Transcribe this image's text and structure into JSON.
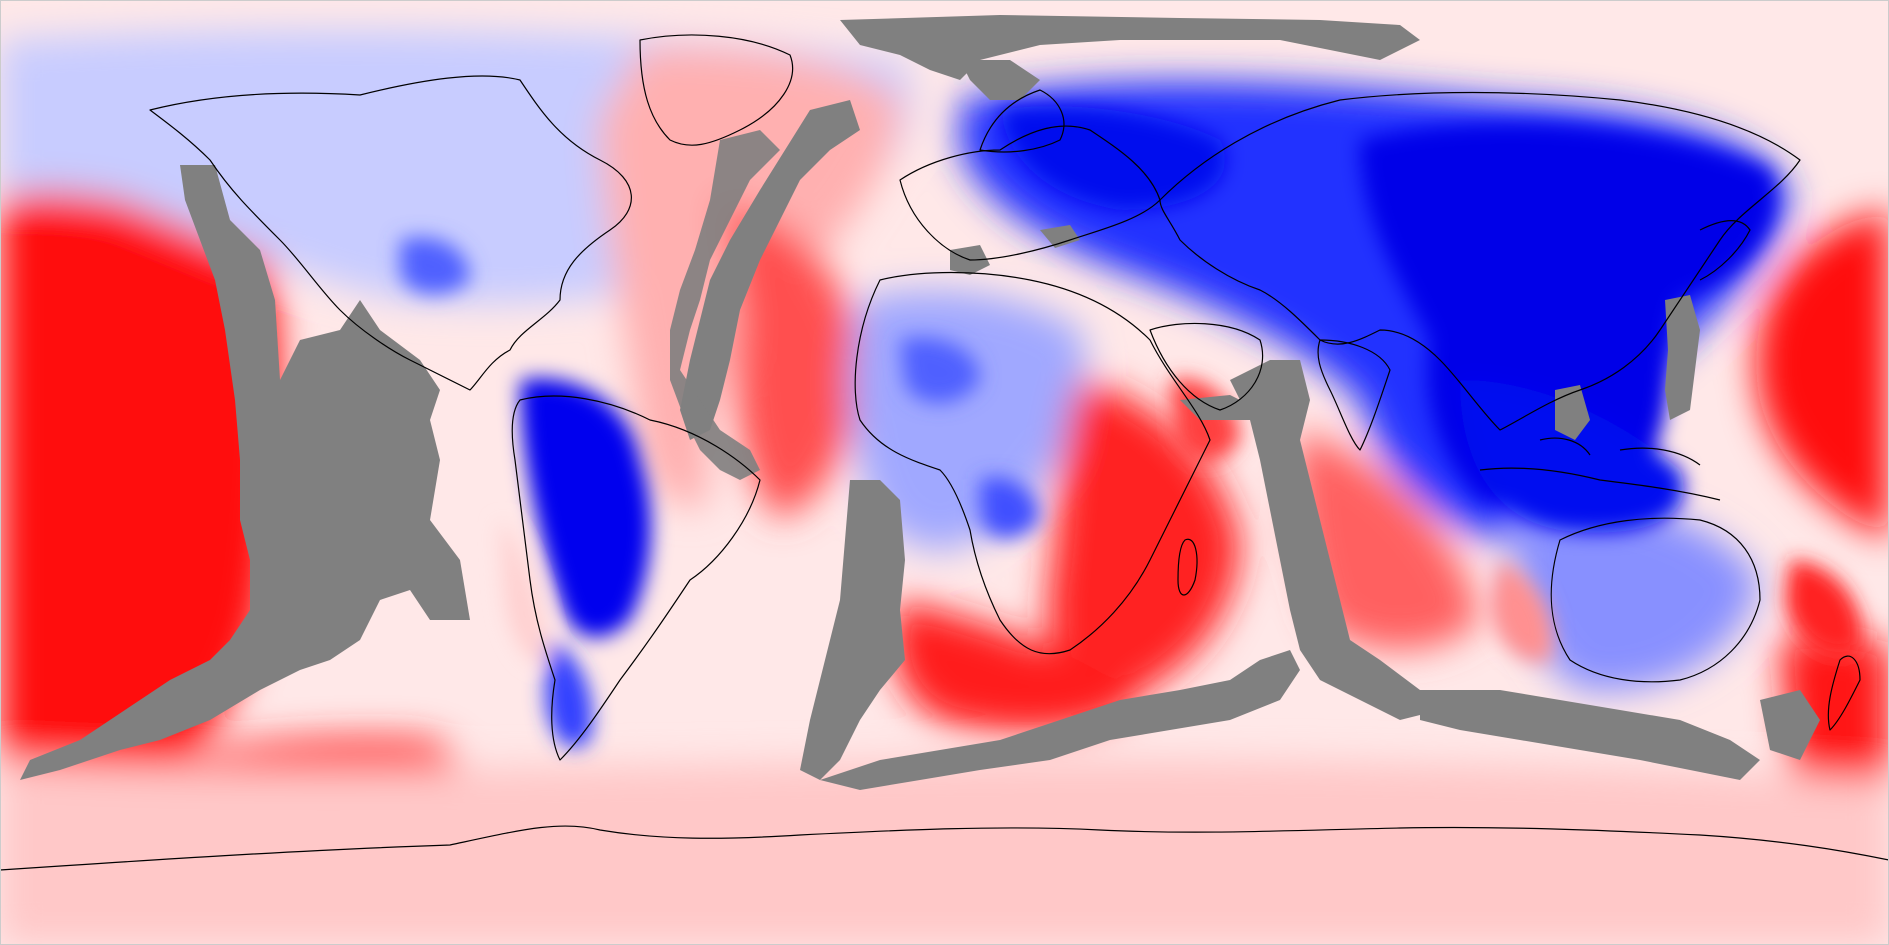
{
  "map": {
    "kind": "global seismic velocity anomaly (equirectangular)",
    "projection": "equirectangular",
    "color_scale": {
      "fast": "#0000ff",
      "neutral": "#ffffff",
      "slow": "#ff0000",
      "masked": "#808080"
    },
    "coastline_color": "#000000",
    "labels": []
  }
}
